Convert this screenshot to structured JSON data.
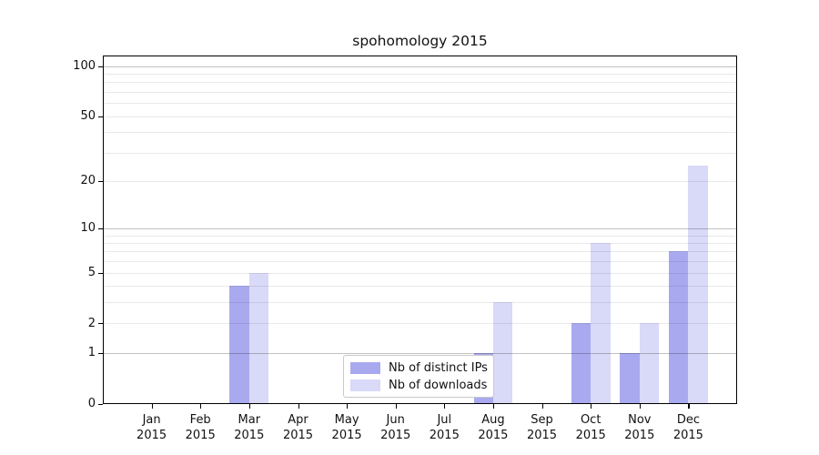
{
  "figure": {
    "background": "#ffffff",
    "text_color": "#111111",
    "axis_color": "#000000",
    "grid_minor_color": "#eaeaea",
    "grid_major_color": "#c4c4c4"
  },
  "chart_data": {
    "type": "bar",
    "title": "spohomology 2015",
    "xlabel": "",
    "ylabel": "",
    "year": "2015",
    "categories": [
      "Jan",
      "Feb",
      "Mar",
      "Apr",
      "May",
      "Jun",
      "Jul",
      "Aug",
      "Sep",
      "Oct",
      "Nov",
      "Dec"
    ],
    "series": [
      {
        "name": "Nb of distinct IPs",
        "color": "#a9a9f0",
        "values": [
          0,
          0,
          4,
          0,
          0,
          0,
          0,
          1,
          0,
          2,
          1,
          7
        ]
      },
      {
        "name": "Nb of downloads",
        "color": "#d9d9f8",
        "values": [
          0,
          0,
          5,
          0,
          0,
          0,
          0,
          3,
          0,
          8,
          2,
          25
        ]
      }
    ],
    "y_scale": "log10(1+x)",
    "y_tick_values": [
      0,
      1,
      2,
      5,
      10,
      20,
      50,
      100
    ],
    "y_tick_labels": [
      "0",
      "1",
      "2",
      "5",
      "10",
      "20",
      "50",
      "100"
    ],
    "y_major_gridlines": [
      1,
      10,
      100
    ],
    "y_minor_gridlines": [
      2,
      3,
      4,
      5,
      6,
      7,
      8,
      9,
      20,
      30,
      40,
      50,
      60,
      70,
      80,
      90
    ],
    "ylim": [
      0,
      116
    ],
    "grid": true,
    "legend": {
      "position": "lower center-right, inside plot",
      "labels": [
        "Nb of distinct IPs",
        "Nb of downloads"
      ]
    }
  }
}
